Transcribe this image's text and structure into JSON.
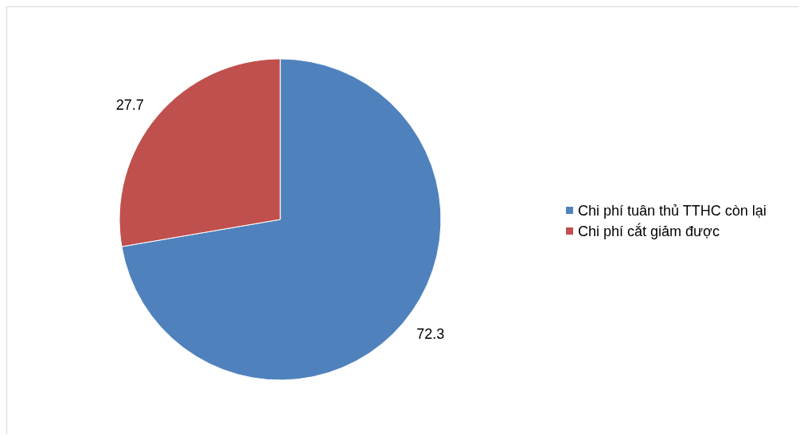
{
  "chart_data": {
    "type": "pie",
    "categories": [
      "Chi phí tuân thủ TTHC còn lại",
      "Chi phí cắt giảm được"
    ],
    "values": [
      72.3,
      27.7
    ],
    "colors": [
      "#4f81bd",
      "#c0504d"
    ],
    "data_labels": true,
    "legend": "right"
  }
}
